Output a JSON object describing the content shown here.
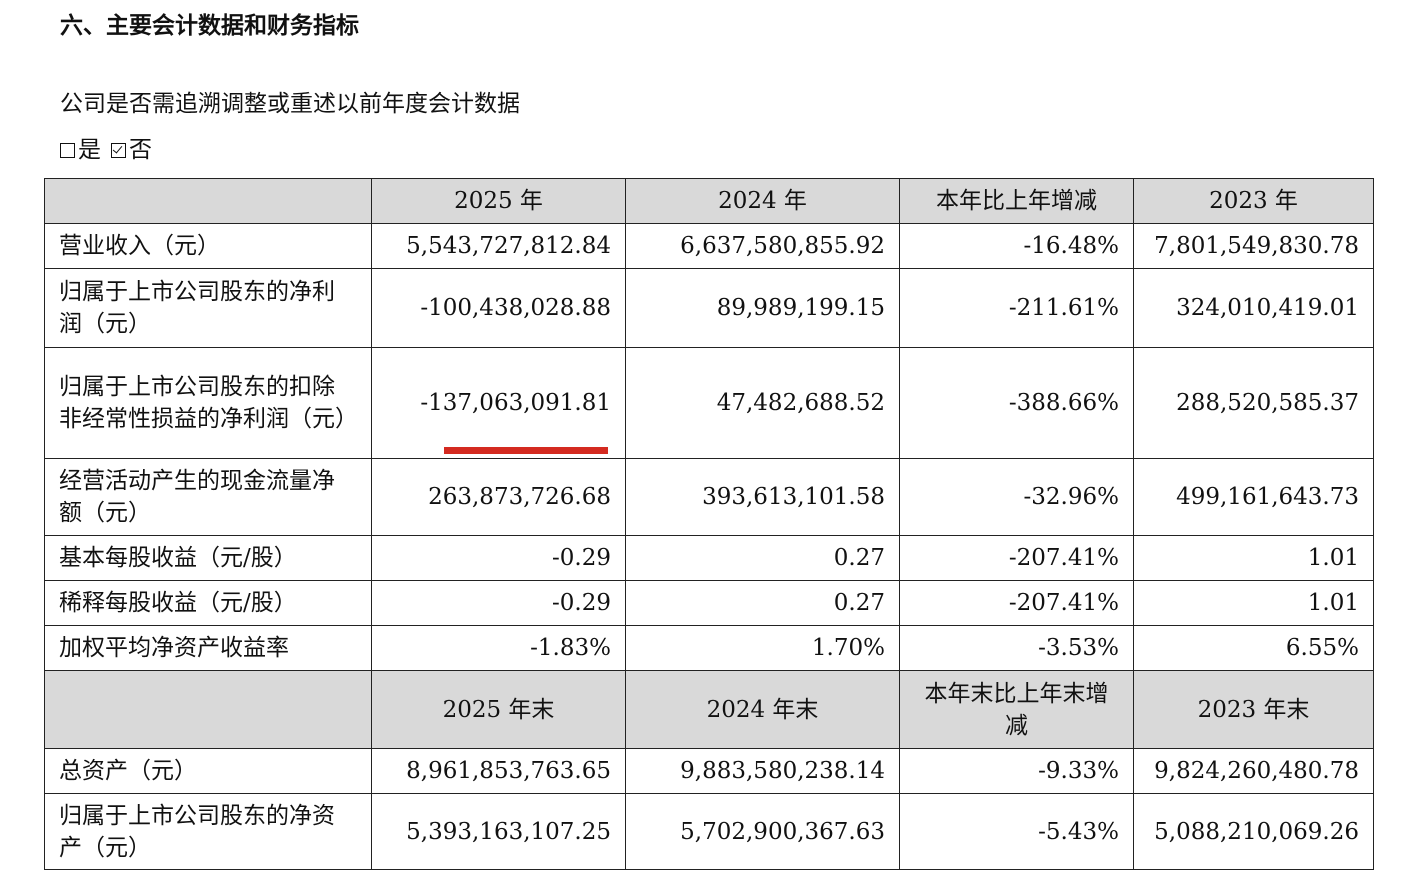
{
  "section_title": "六、主要会计数据和财务指标",
  "question": "公司是否需追溯调整或重述以前年度会计数据",
  "options": [
    {
      "label": "是",
      "checked": false
    },
    {
      "label": "否",
      "checked": true
    }
  ],
  "table": {
    "header1": [
      "",
      "2025 年",
      "2024 年",
      "本年比上年增减",
      "2023 年"
    ],
    "rows1": [
      {
        "label": "营业收入（元）",
        "values": [
          "5,543,727,812.84",
          "6,637,580,855.92",
          "-16.48%",
          "7,801,549,830.78"
        ]
      },
      {
        "label": "归属于上市公司股东的净利润（元）",
        "values": [
          "-100,438,028.88",
          "89,989,199.15",
          "-211.61%",
          "324,010,419.01"
        ]
      },
      {
        "label": "归属于上市公司股东的扣除非经常性损益的净利润（元）",
        "values": [
          "-137,063,091.81",
          "47,482,688.52",
          "-388.66%",
          "288,520,585.37"
        ]
      },
      {
        "label": "经营活动产生的现金流量净额（元）",
        "values": [
          "263,873,726.68",
          "393,613,101.58",
          "-32.96%",
          "499,161,643.73"
        ]
      },
      {
        "label": "基本每股收益（元/股）",
        "values": [
          "-0.29",
          "0.27",
          "-207.41%",
          "1.01"
        ]
      },
      {
        "label": "稀释每股收益（元/股）",
        "values": [
          "-0.29",
          "0.27",
          "-207.41%",
          "1.01"
        ]
      },
      {
        "label": "加权平均净资产收益率",
        "values": [
          "-1.83%",
          "1.70%",
          "-3.53%",
          "6.55%"
        ]
      }
    ],
    "header2": [
      "",
      "2025 年末",
      "2024 年末",
      "本年末比上年末增减",
      "2023 年末"
    ],
    "rows2": [
      {
        "label": "总资产（元）",
        "values": [
          "8,961,853,763.65",
          "9,883,580,238.14",
          "-9.33%",
          "9,824,260,480.78"
        ]
      },
      {
        "label": "归属于上市公司股东的净资产（元）",
        "values": [
          "5,393,163,107.25",
          "5,702,900,367.63",
          "-5.43%",
          "5,088,210,069.26"
        ]
      }
    ]
  },
  "colors": {
    "header_bg": "#d9d9d9",
    "highlight_underline": "#d42a20"
  }
}
